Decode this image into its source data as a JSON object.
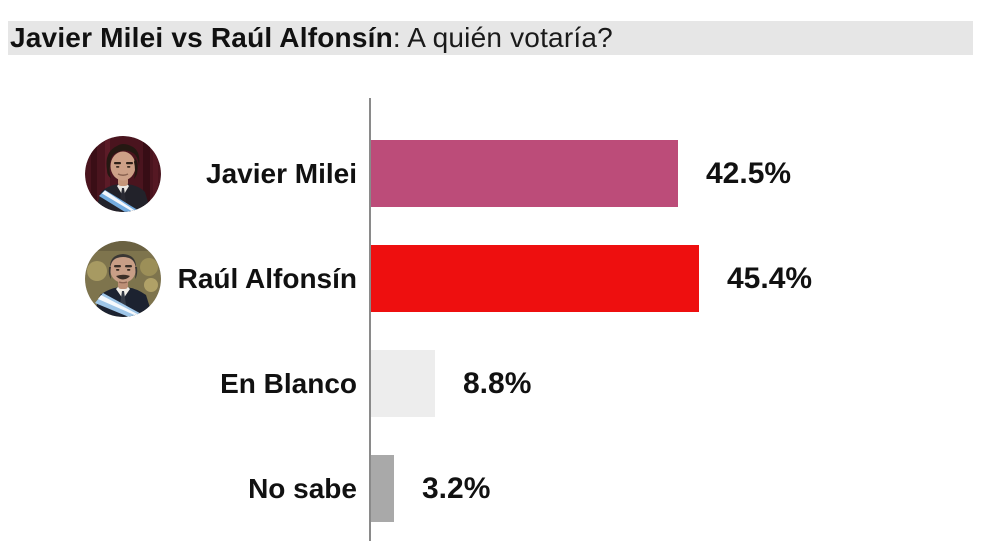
{
  "header": {
    "title_bold": "Javier Milei vs Raúl Alfonsín",
    "title_rest": ": A quién votaría?",
    "band_color": "#e6e6e6"
  },
  "chart_data": {
    "type": "bar",
    "orientation": "horizontal",
    "title": "Javier Milei vs Raúl Alfonsín: A quién votaría?",
    "categories": [
      "Javier Milei",
      "Raúl Alfonsín",
      "En Blanco",
      "No sabe"
    ],
    "values": [
      42.5,
      45.4,
      8.8,
      3.2
    ],
    "value_labels": [
      "42.5%",
      "45.4%",
      "8.8%",
      "3.2%"
    ],
    "bar_colors": [
      "#bc4c79",
      "#ee0f0f",
      "#ededed",
      "#a9a9a9"
    ],
    "avatars": [
      "milei-avatar",
      "alfonsin-avatar",
      null,
      null
    ],
    "xlim": [
      0,
      50
    ],
    "axis_color": "#8a8a8a",
    "grid": false,
    "legend": false,
    "value_label_position": "right-of-bar"
  }
}
